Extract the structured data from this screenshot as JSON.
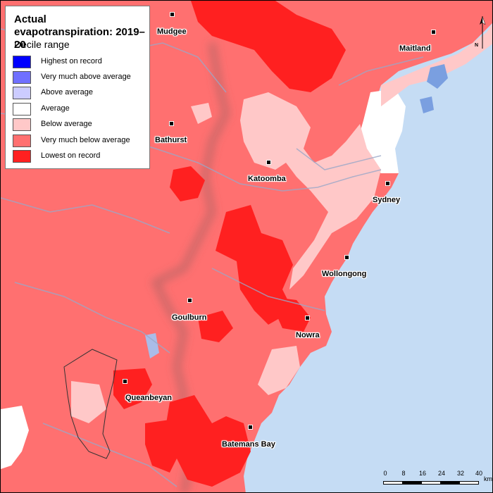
{
  "legend": {
    "title": "Actual evapotranspiration: 2019–20",
    "subtitle": "Decile range",
    "items": [
      {
        "label": "Highest on record",
        "color": "#0000ff"
      },
      {
        "label": "Very much above average",
        "color": "#7070ff"
      },
      {
        "label": "Above average",
        "color": "#ccccff"
      },
      {
        "label": "Average",
        "color": "#ffffff"
      },
      {
        "label": "Below average",
        "color": "#ffc8c8"
      },
      {
        "label": "Very much below average",
        "color": "#ff7070"
      },
      {
        "label": "Lowest on record",
        "color": "#ff2020"
      }
    ]
  },
  "towns": [
    {
      "name": "Mudgee"
    },
    {
      "name": "Maitland"
    },
    {
      "name": "Bathurst"
    },
    {
      "name": "Katoomba"
    },
    {
      "name": "Sydney"
    },
    {
      "name": "Wollongong"
    },
    {
      "name": "Goulburn"
    },
    {
      "name": "Nowra"
    },
    {
      "name": "Queanbeyan"
    },
    {
      "name": "Batemans Bay"
    }
  ],
  "scale": {
    "ticks": [
      "0",
      "8",
      "16",
      "24",
      "32",
      "40"
    ],
    "unit": "km"
  },
  "north_label": "N",
  "colors": {
    "ocean": "#c5dcf4",
    "land_base": "#ff7070",
    "lowest": "#ff2020",
    "below": "#ffc8c8",
    "average": "#ffffff",
    "above": "#7a9fe0",
    "rivers": "#9aa8c8"
  }
}
